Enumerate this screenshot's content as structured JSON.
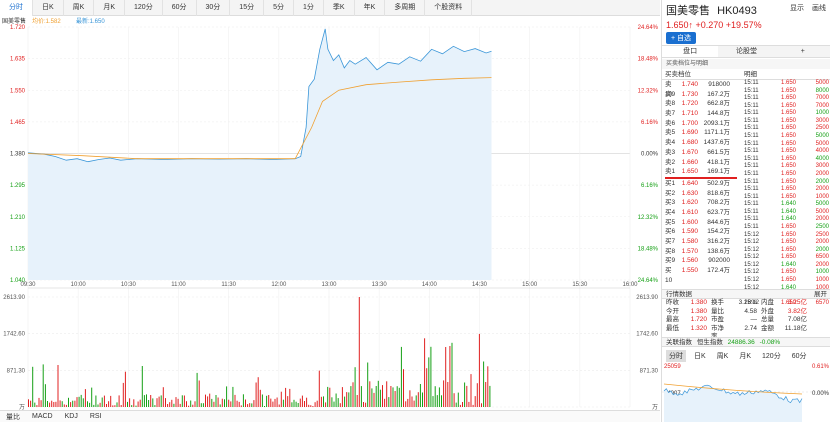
{
  "toolbar": {
    "tabs": [
      "分时",
      "日K",
      "周K",
      "月K",
      "120分",
      "60分",
      "30分",
      "15分",
      "5分",
      "1分",
      "季K",
      "年K",
      "多周期",
      "个股资料"
    ],
    "active_tab": 0,
    "display_label": "显示",
    "draw_label": "画线"
  },
  "chart": {
    "stock_label": "国美零售",
    "avg_label": "均价:1.582",
    "latest_label": "最新:1.650",
    "price_ticks": [
      "1.720",
      "1.635",
      "1.550",
      "1.465",
      "1.380",
      "1.295",
      "1.210",
      "1.125",
      "1.040"
    ],
    "pct_ticks": [
      "24.64%",
      "18.48%",
      "12.32%",
      "6.16%",
      "0.00%",
      "6.16%",
      "12.32%",
      "18.48%",
      "24.64%"
    ],
    "vol_ticks": [
      "2613.90",
      "1742.60",
      "871.30",
      "万"
    ],
    "time_ticks": [
      "09:30",
      "10:00",
      "10:30",
      "11:00",
      "11:30",
      "12:00",
      "13:00",
      "13:30",
      "14:00",
      "14:30",
      "15:00",
      "15:30",
      "16:00"
    ]
  },
  "bottom_tabs": [
    "量比",
    "MACD",
    "KDJ",
    "RSI"
  ],
  "header": {
    "name": "国美零售",
    "code": "HK0493",
    "price_line": "1.650↑ +0.270 +19.57%",
    "add_label": "+ 自选"
  },
  "right_tabs": [
    "盘口",
    "论股堂",
    "+"
  ],
  "sub_header": "买卖档位与明细",
  "orderbook": {
    "col1": "买卖档位",
    "col2": "明细",
    "sells": [
      {
        "l": "卖10",
        "p": "1.740",
        "v": "918000"
      },
      {
        "l": "卖9",
        "p": "1.730",
        "v": "167.2万"
      },
      {
        "l": "卖8",
        "p": "1.720",
        "v": "662.8万"
      },
      {
        "l": "卖7",
        "p": "1.710",
        "v": "144.8万"
      },
      {
        "l": "卖6",
        "p": "1.700",
        "v": "2093.1万"
      },
      {
        "l": "卖5",
        "p": "1.690",
        "v": "1171.1万"
      },
      {
        "l": "卖4",
        "p": "1.680",
        "v": "1437.6万"
      },
      {
        "l": "卖3",
        "p": "1.670",
        "v": "661.5万"
      },
      {
        "l": "卖2",
        "p": "1.660",
        "v": "418.1万"
      },
      {
        "l": "卖1",
        "p": "1.650",
        "v": "169.1万"
      }
    ],
    "buys": [
      {
        "l": "买1",
        "p": "1.640",
        "v": "502.9万"
      },
      {
        "l": "买2",
        "p": "1.630",
        "v": "818.6万"
      },
      {
        "l": "买3",
        "p": "1.620",
        "v": "708.2万"
      },
      {
        "l": "买4",
        "p": "1.610",
        "v": "623.7万"
      },
      {
        "l": "买5",
        "p": "1.600",
        "v": "844.6万"
      },
      {
        "l": "买6",
        "p": "1.590",
        "v": "154.2万"
      },
      {
        "l": "买7",
        "p": "1.580",
        "v": "316.2万"
      },
      {
        "l": "买8",
        "p": "1.570",
        "v": "138.6万"
      },
      {
        "l": "买9",
        "p": "1.560",
        "v": "902000"
      },
      {
        "l": "买10",
        "p": "1.550",
        "v": "172.4万"
      }
    ],
    "ticks": [
      {
        "t": "15:11",
        "p": "1.650",
        "v": "5000"
      },
      {
        "t": "15:11",
        "p": "1.650",
        "v": "8000"
      },
      {
        "t": "15:11",
        "p": "1.650",
        "v": "7000"
      },
      {
        "t": "15:11",
        "p": "1.650",
        "v": "7000"
      },
      {
        "t": "15:11",
        "p": "1.650",
        "v": "1000"
      },
      {
        "t": "15:11",
        "p": "1.650",
        "v": "3000"
      },
      {
        "t": "15:11",
        "p": "1.650",
        "v": "2500"
      },
      {
        "t": "15:11",
        "p": "1.650",
        "v": "5000"
      },
      {
        "t": "15:11",
        "p": "1.650",
        "v": "5000"
      },
      {
        "t": "15:11",
        "p": "1.650",
        "v": "4000"
      },
      {
        "t": "15:11",
        "p": "1.650",
        "v": "4000"
      },
      {
        "t": "15:11",
        "p": "1.650",
        "v": "3000"
      },
      {
        "t": "15:11",
        "p": "1.650",
        "v": "2000"
      },
      {
        "t": "15:11",
        "p": "1.650",
        "v": "2000"
      },
      {
        "t": "15:11",
        "p": "1.650",
        "v": "2000"
      },
      {
        "t": "15:11",
        "p": "1.650",
        "v": "1000"
      },
      {
        "t": "15:11",
        "p": "1.640",
        "v": "5000"
      },
      {
        "t": "15:11",
        "p": "1.640",
        "v": "5000"
      },
      {
        "t": "15:11",
        "p": "1.640",
        "v": "2000"
      },
      {
        "t": "15:11",
        "p": "1.650",
        "v": "2500"
      },
      {
        "t": "15:12",
        "p": "1.650",
        "v": "2500"
      },
      {
        "t": "15:12",
        "p": "1.650",
        "v": "2000"
      },
      {
        "t": "15:12",
        "p": "1.650",
        "v": "2000"
      },
      {
        "t": "15:12",
        "p": "1.650",
        "v": "6500"
      },
      {
        "t": "15:12",
        "p": "1.640",
        "v": "2000"
      },
      {
        "t": "15:12",
        "p": "1.650",
        "v": "1000"
      },
      {
        "t": "15:12",
        "p": "1.650",
        "v": "1000"
      },
      {
        "t": "15:12",
        "p": "1.640",
        "v": "1000"
      },
      {
        "t": "15:12",
        "p": "1.650",
        "v": "1000"
      },
      {
        "t": "15:12",
        "p": "1.650",
        "v": "6570"
      }
    ]
  },
  "quote": {
    "title": "行情数据",
    "expand": "展开",
    "rows": [
      [
        "昨收",
        "1.380",
        "换手",
        "3.28%",
        "内盘",
        "3.25亿"
      ],
      [
        "今开",
        "1.380",
        "量比",
        "4.58",
        "外盘",
        "3.82亿"
      ],
      [
        "最高",
        "1.720",
        "市盈",
        "—",
        "总量",
        "7.08亿"
      ],
      [
        "最低",
        "1.320",
        "市净率",
        "2.74",
        "金额",
        "11.18亿"
      ]
    ]
  },
  "index": {
    "label": "关联指数",
    "name": "恒生指数",
    "value": "24886.36",
    "change": "-0.08%"
  },
  "mini_tabs": [
    "分时",
    "日K",
    "周K",
    "月K",
    "120分",
    "60分"
  ],
  "mini_chart": {
    "top_left": "25059",
    "mid_left": "24907",
    "top_right": "0.61%",
    "mid_right": "0.00%"
  },
  "colors": {
    "up": "#e02020",
    "down": "#15a015",
    "price": "#3a96d8",
    "avg": "#f0a030"
  }
}
